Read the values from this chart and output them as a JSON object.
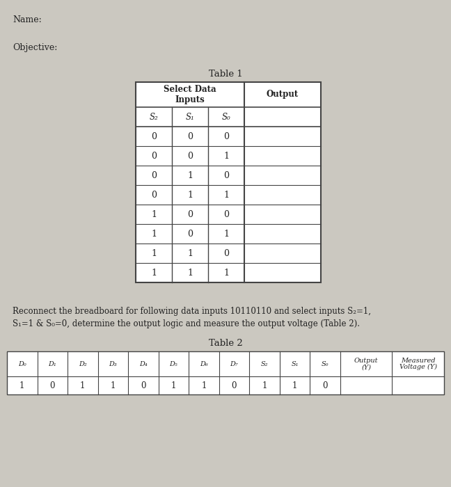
{
  "background_color": "#cbc8c0",
  "name_label": "Name:",
  "objective_label": "Objective:",
  "table1_title": "Table 1",
  "table1_subheaders": [
    "S₂",
    "S₁",
    "S₀"
  ],
  "table1_data": [
    [
      "0",
      "0",
      "0"
    ],
    [
      "0",
      "0",
      "1"
    ],
    [
      "0",
      "1",
      "0"
    ],
    [
      "0",
      "1",
      "1"
    ],
    [
      "1",
      "0",
      "0"
    ],
    [
      "1",
      "0",
      "1"
    ],
    [
      "1",
      "1",
      "0"
    ],
    [
      "1",
      "1",
      "1"
    ]
  ],
  "paragraph_line1": "Reconnect the breadboard for following data inputs 10110110 and select inputs S₂=1,",
  "paragraph_line2": "S₁=1 & S₀=0, determine the output logic and measure the output voltage (Table 2).",
  "table2_title": "Table 2",
  "table2_headers": [
    "D₀",
    "D₁",
    "D₂",
    "D₃",
    "D₄",
    "D₅",
    "D₆",
    "D₇",
    "S₂",
    "S₁",
    "S₀",
    "Output\n(Y)",
    "Measured\nVoltage (Y)"
  ],
  "table2_data": [
    "1",
    "0",
    "1",
    "1",
    "0",
    "1",
    "1",
    "0",
    "1",
    "1",
    "0",
    "",
    ""
  ],
  "line_color": "#444444",
  "text_color": "#222222",
  "white": "#ffffff"
}
